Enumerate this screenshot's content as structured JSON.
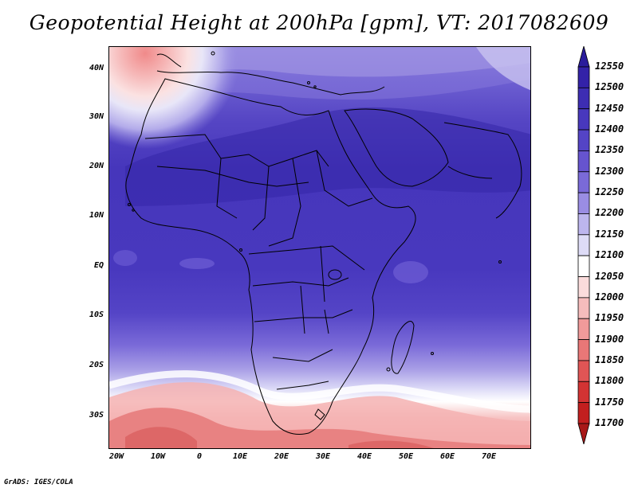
{
  "title": "Geopotential Height at 200hPa [gpm], VT: 2017082609",
  "credit": "GrADS: IGES/COLA",
  "lat_ticks": [
    "40N",
    "30N",
    "20N",
    "10N",
    "EQ",
    "10S",
    "20S",
    "30S"
  ],
  "lon_ticks": [
    "20W",
    "10W",
    "0",
    "10E",
    "20E",
    "30E",
    "40E",
    "50E",
    "60E",
    "70E"
  ],
  "colorbar": {
    "levels": [
      "12550",
      "12500",
      "12450",
      "12400",
      "12350",
      "12300",
      "12250",
      "12200",
      "12150",
      "12100",
      "12050",
      "12000",
      "11950",
      "11900",
      "11850",
      "11800",
      "11750",
      "11700"
    ],
    "colors": [
      "#2a1c9c",
      "#3322a8",
      "#3d2db3",
      "#4838bd",
      "#5444c6",
      "#6654cf",
      "#7a6ad8",
      "#9a8de3",
      "#bdb6ee",
      "#dedcf7",
      "#ffffff",
      "#fbdcdc",
      "#f6bcbc",
      "#f09a9a",
      "#e97777",
      "#e05555",
      "#d33333",
      "#c21f1f",
      "#a81818"
    ]
  }
}
